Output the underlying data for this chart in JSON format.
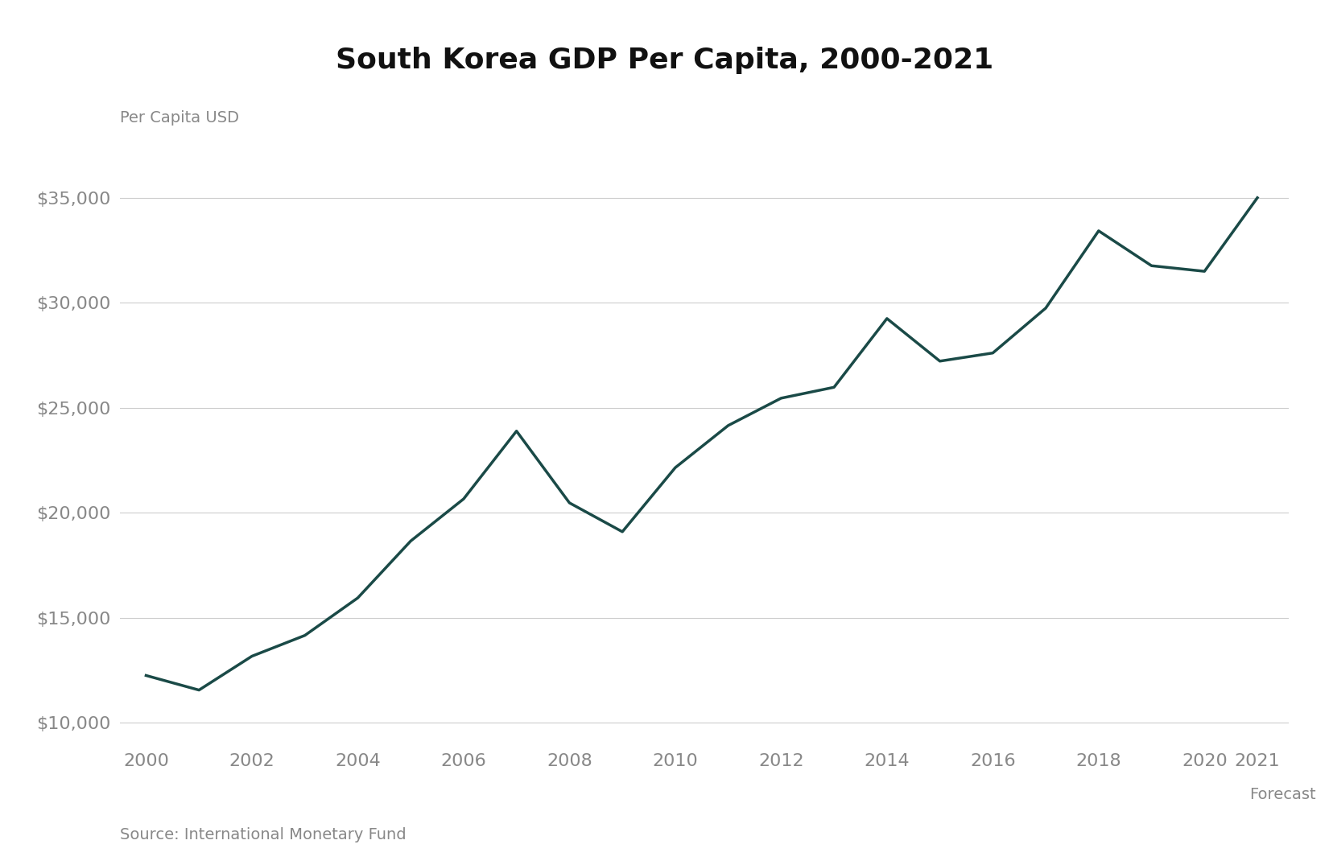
{
  "title": "South Korea GDP Per Capita, 2000-2021",
  "ylabel": "Per Capita USD",
  "source": "Source: International Monetary Fund",
  "forecast_label": "Forecast",
  "line_color": "#1a4a47",
  "background_color": "#ffffff",
  "years": [
    2000,
    2001,
    2002,
    2003,
    2004,
    2005,
    2006,
    2007,
    2008,
    2009,
    2010,
    2011,
    2012,
    2013,
    2014,
    2015,
    2016,
    2017,
    2018,
    2019,
    2020,
    2021
  ],
  "gdp": [
    12257,
    11563,
    13175,
    14164,
    15949,
    18657,
    20661,
    23892,
    20475,
    19100,
    22151,
    24156,
    25457,
    25977,
    29249,
    27221,
    27608,
    29744,
    33423,
    31762,
    31497,
    34998
  ],
  "ylim_min": 9000,
  "ylim_max": 37000,
  "yticks": [
    10000,
    15000,
    20000,
    25000,
    30000,
    35000
  ],
  "xticks": [
    2000,
    2002,
    2004,
    2006,
    2008,
    2010,
    2012,
    2014,
    2016,
    2018,
    2020,
    2021
  ],
  "line_width": 2.5,
  "title_fontsize": 26,
  "tick_fontsize": 16,
  "label_fontsize": 14,
  "source_fontsize": 14
}
